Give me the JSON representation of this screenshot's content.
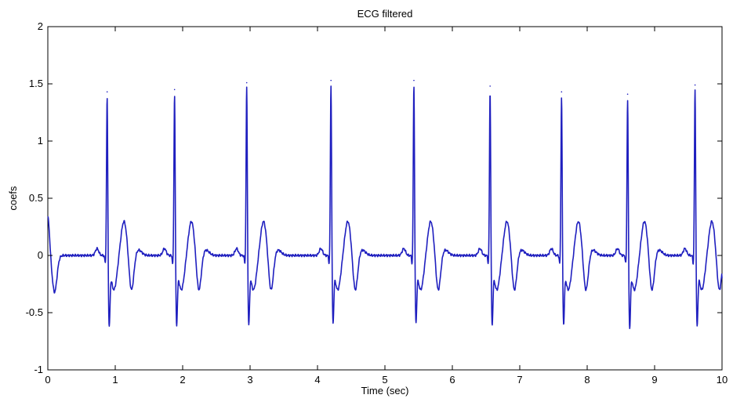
{
  "chart_data": {
    "type": "line",
    "title": "ECG filtered",
    "xlabel": "Time (sec)",
    "ylabel": "coefs",
    "xlim": [
      0,
      10
    ],
    "ylim": [
      -1,
      2
    ],
    "xticks": [
      0,
      1,
      2,
      3,
      4,
      5,
      6,
      7,
      8,
      9,
      10
    ],
    "yticks": [
      -1,
      -0.5,
      0,
      0.5,
      1,
      1.5,
      2
    ],
    "xtick_labels": [
      "0",
      "1",
      "2",
      "3",
      "4",
      "5",
      "6",
      "7",
      "8",
      "9",
      "10"
    ],
    "ytick_labels": [
      "-1",
      "-0.5",
      "0",
      "0.5",
      "1",
      "1.5",
      "2"
    ],
    "grid": false,
    "line_color": "#1f1fbf",
    "series": [
      {
        "beats": [
          {
            "r_time": 0.88,
            "r_peak": 1.43,
            "s_min": -0.54
          },
          {
            "r_time": 1.88,
            "r_peak": 1.45,
            "s_min": -0.52
          },
          {
            "r_time": 2.95,
            "r_peak": 1.51,
            "s_min": -0.52
          },
          {
            "r_time": 4.2,
            "r_peak": 1.53,
            "s_min": -0.5
          },
          {
            "r_time": 5.43,
            "r_peak": 1.53,
            "s_min": -0.5
          },
          {
            "r_time": 6.56,
            "r_peak": 1.48,
            "s_min": -0.52
          },
          {
            "r_time": 7.62,
            "r_peak": 1.43,
            "s_min": -0.51
          },
          {
            "r_time": 8.6,
            "r_peak": 1.41,
            "s_min": -0.55
          },
          {
            "r_time": 9.6,
            "r_peak": 1.49,
            "s_min": -0.53
          }
        ],
        "start_value": 0.34,
        "end_value": -0.2,
        "t_wave_peak": 0.3,
        "t_wave_trough": -0.32,
        "p_wave_peak": 0.06
      }
    ]
  }
}
